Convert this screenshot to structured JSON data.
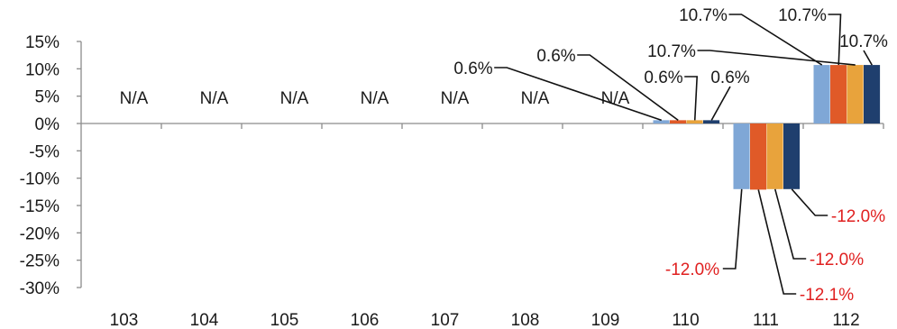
{
  "chart_data": {
    "type": "bar",
    "title": "",
    "xlabel": "",
    "ylabel": "",
    "ylim": [
      -30,
      15
    ],
    "ytick_labels": [
      "15%",
      "10%",
      "5%",
      "0%",
      "-5%",
      "-10%",
      "-15%",
      "-20%",
      "-25%",
      "-30%"
    ],
    "categories": [
      "103",
      "104",
      "105",
      "106",
      "107",
      "108",
      "109",
      "110",
      "111",
      "112"
    ],
    "na_label": "N/A",
    "na_categories": [
      "103",
      "104",
      "105",
      "106",
      "107",
      "108",
      "109"
    ],
    "series_colors": [
      "#7fa7d6",
      "#e05a28",
      "#e8a33c",
      "#1f3f6e"
    ],
    "label_colors": {
      "positive": "#1a1a1a",
      "negative": "#e02020"
    },
    "series": [
      {
        "values": [
          null,
          null,
          null,
          null,
          null,
          null,
          null,
          0.6,
          -12.0,
          10.7
        ],
        "labels": [
          "",
          "",
          "",
          "",
          "",
          "",
          "",
          "0.6%",
          "-12.0%",
          "10.7%"
        ]
      },
      {
        "values": [
          null,
          null,
          null,
          null,
          null,
          null,
          null,
          0.6,
          -12.1,
          10.7
        ],
        "labels": [
          "",
          "",
          "",
          "",
          "",
          "",
          "",
          "0.6%",
          "-12.1%",
          "10.7%"
        ]
      },
      {
        "values": [
          null,
          null,
          null,
          null,
          null,
          null,
          null,
          0.6,
          -12.0,
          10.7
        ],
        "labels": [
          "",
          "",
          "",
          "",
          "",
          "",
          "",
          "0.6%",
          "-12.0%",
          "10.7%"
        ]
      },
      {
        "values": [
          null,
          null,
          null,
          null,
          null,
          null,
          null,
          0.6,
          -12.0,
          10.7
        ],
        "labels": [
          "",
          "",
          "",
          "",
          "",
          "",
          "",
          "0.6%",
          "-12.0%",
          "10.7%"
        ]
      }
    ],
    "grid": false,
    "legend": "none"
  }
}
